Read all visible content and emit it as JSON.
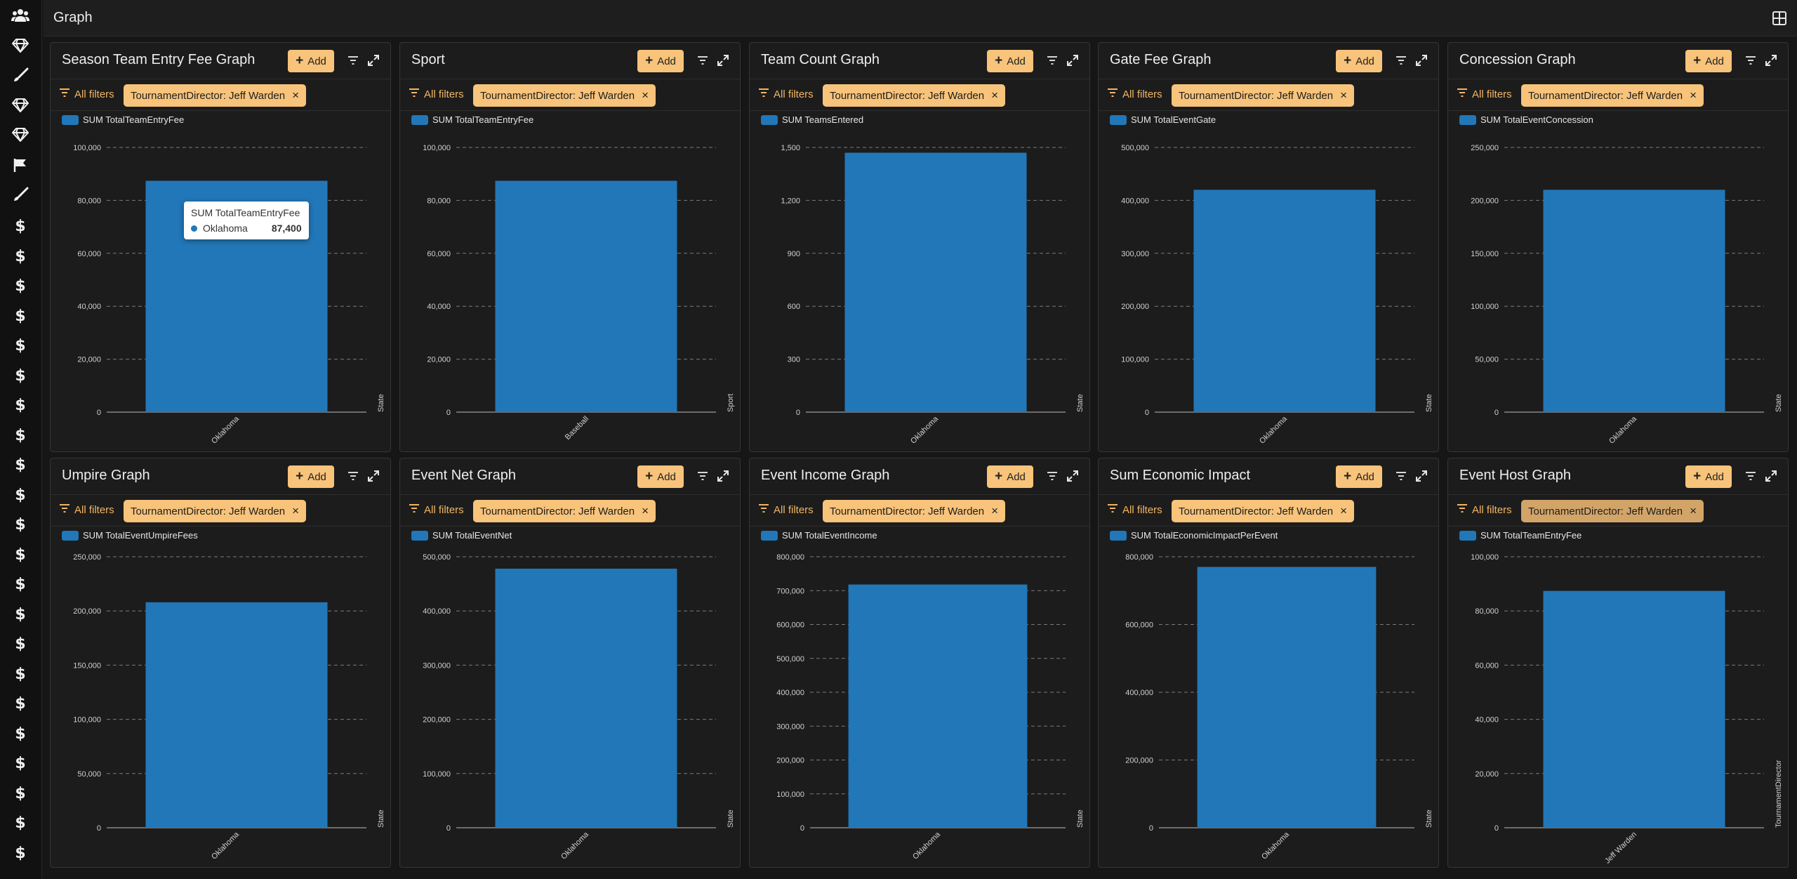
{
  "page": {
    "title": "Graph"
  },
  "sidebar": {
    "icons": [
      "users-icon",
      "diamond-icon",
      "brush-icon",
      "diamond-icon",
      "diamond-icon",
      "flag-icon",
      "brush-icon",
      "dollar-icon",
      "dollar-icon",
      "dollar-icon",
      "dollar-icon",
      "dollar-icon",
      "dollar-icon",
      "dollar-icon",
      "dollar-icon",
      "dollar-icon",
      "dollar-icon",
      "dollar-icon",
      "dollar-icon",
      "dollar-icon",
      "dollar-icon",
      "dollar-icon",
      "dollar-icon",
      "dollar-icon",
      "dollar-icon",
      "dollar-icon",
      "dollar-icon",
      "dollar-icon",
      "dollar-icon"
    ],
    "dollar_glyph": "$"
  },
  "common": {
    "add_label": "Add",
    "all_filters_label": "All filters",
    "filter_label": "TournamentDirector: Jeff Warden",
    "close_glyph": "×",
    "plus_glyph": "+"
  },
  "colors": {
    "bar": "#2277b8",
    "accent": "#f8c37a",
    "accent_text": "#f2b562",
    "grid": "#7a7a7a",
    "axis": "#bcbcbc"
  },
  "tooltip": {
    "title": "SUM TotalTeamEntryFee",
    "label": "Oklahoma",
    "value": "87,400"
  },
  "cards": [
    {
      "title": "Season Team Entry Fee Graph",
      "chart_data": {
        "type": "bar",
        "categories": [
          "Oklahoma"
        ],
        "series": [
          {
            "name": "SUM TotalTeamEntryFee",
            "values": [
              87400
            ]
          }
        ],
        "ylim": [
          0,
          100000
        ],
        "yticks": [
          "0",
          "20,000",
          "40,000",
          "60,000",
          "80,000",
          "100,000"
        ],
        "xlabel": "State"
      }
    },
    {
      "title": "Sport",
      "chart_data": {
        "type": "bar",
        "categories": [
          "Baseball"
        ],
        "series": [
          {
            "name": "SUM TotalTeamEntryFee",
            "values": [
              87400
            ]
          }
        ],
        "ylim": [
          0,
          100000
        ],
        "yticks": [
          "0",
          "20,000",
          "40,000",
          "60,000",
          "80,000",
          "100,000"
        ],
        "xlabel": "Sport"
      }
    },
    {
      "title": "Team Count Graph",
      "chart_data": {
        "type": "bar",
        "categories": [
          "Oklahoma"
        ],
        "series": [
          {
            "name": "SUM TeamsEntered",
            "values": [
              1470
            ]
          }
        ],
        "ylim": [
          0,
          1500
        ],
        "yticks": [
          "0",
          "300",
          "600",
          "900",
          "1,200",
          "1,500"
        ],
        "xlabel": "State"
      }
    },
    {
      "title": "Gate Fee Graph",
      "chart_data": {
        "type": "bar",
        "categories": [
          "Oklahoma"
        ],
        "series": [
          {
            "name": "SUM TotalEventGate",
            "values": [
              420000
            ]
          }
        ],
        "ylim": [
          0,
          500000
        ],
        "yticks": [
          "0",
          "100,000",
          "200,000",
          "300,000",
          "400,000",
          "500,000"
        ],
        "xlabel": "State"
      }
    },
    {
      "title": "Concession Graph",
      "chart_data": {
        "type": "bar",
        "categories": [
          "Oklahoma"
        ],
        "series": [
          {
            "name": "SUM TotalEventConcession",
            "values": [
              210000
            ]
          }
        ],
        "ylim": [
          0,
          250000
        ],
        "yticks": [
          "0",
          "50,000",
          "100,000",
          "150,000",
          "200,000",
          "250,000"
        ],
        "xlabel": "State"
      }
    },
    {
      "title": "Umpire Graph",
      "chart_data": {
        "type": "bar",
        "categories": [
          "Oklahoma"
        ],
        "series": [
          {
            "name": "SUM TotalEventUmpireFees",
            "values": [
              208000
            ]
          }
        ],
        "ylim": [
          0,
          250000
        ],
        "yticks": [
          "0",
          "50,000",
          "100,000",
          "150,000",
          "200,000",
          "250,000"
        ],
        "xlabel": "State"
      }
    },
    {
      "title": "Event Net Graph",
      "chart_data": {
        "type": "bar",
        "categories": [
          "Oklahoma"
        ],
        "series": [
          {
            "name": "SUM TotalEventNet",
            "values": [
              478000
            ]
          }
        ],
        "ylim": [
          0,
          500000
        ],
        "yticks": [
          "0",
          "100,000",
          "200,000",
          "300,000",
          "400,000",
          "500,000"
        ],
        "xlabel": "State"
      }
    },
    {
      "title": "Event Income Graph",
      "chart_data": {
        "type": "bar",
        "categories": [
          "Oklahoma"
        ],
        "series": [
          {
            "name": "SUM TotalEventIncome",
            "values": [
              718000
            ]
          }
        ],
        "ylim": [
          0,
          800000
        ],
        "yticks": [
          "0",
          "100,000",
          "200,000",
          "300,000",
          "400,000",
          "500,000",
          "600,000",
          "700,000",
          "800,000"
        ],
        "xlabel": "State"
      }
    },
    {
      "title": "Sum Economic Impact",
      "chart_data": {
        "type": "bar",
        "categories": [
          "Oklahoma"
        ],
        "series": [
          {
            "name": "SUM TotalEconomicImpactPerEvent",
            "values": [
              770000
            ]
          }
        ],
        "ylim": [
          0,
          800000
        ],
        "yticks": [
          "0",
          "200,000",
          "400,000",
          "600,000",
          "800,000"
        ],
        "xlabel": "State"
      }
    },
    {
      "title": "Event Host Graph",
      "chart_data": {
        "type": "bar",
        "categories": [
          "Jeff Warden"
        ],
        "series": [
          {
            "name": "SUM TotalTeamEntryFee",
            "values": [
              87400
            ]
          }
        ],
        "ylim": [
          0,
          100000
        ],
        "yticks": [
          "0",
          "20,000",
          "40,000",
          "60,000",
          "80,000",
          "100,000"
        ],
        "xlabel": "TournamentDirector"
      }
    }
  ]
}
